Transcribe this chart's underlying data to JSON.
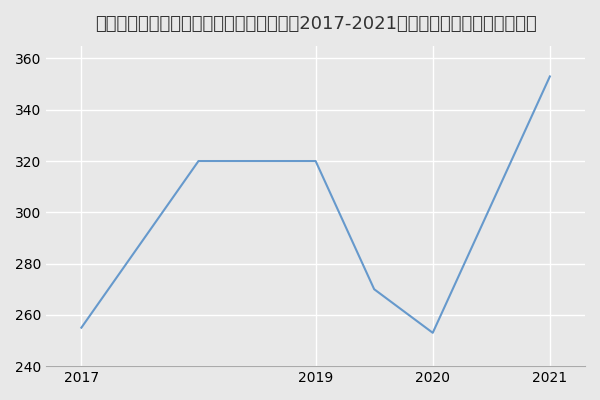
{
  "title": "四川农业大学林学院园林植物与观赏园艺（2017-2021历年复试）研究生录取分数线",
  "x_values": [
    2017,
    2018,
    2019,
    2019.5,
    2020,
    2021
  ],
  "y_values": [
    255,
    320,
    320,
    270,
    253,
    353
  ],
  "line_color": "#6699cc",
  "background_color": "#e8e8e8",
  "plot_bg_color": "#e8e8e8",
  "ylim": [
    240,
    365
  ],
  "xlim": [
    2016.7,
    2021.3
  ],
  "yticks": [
    240,
    260,
    280,
    300,
    320,
    340,
    360
  ],
  "xticks": [
    2017,
    2019,
    2020,
    2021
  ],
  "title_fontsize": 13,
  "tick_fontsize": 10
}
